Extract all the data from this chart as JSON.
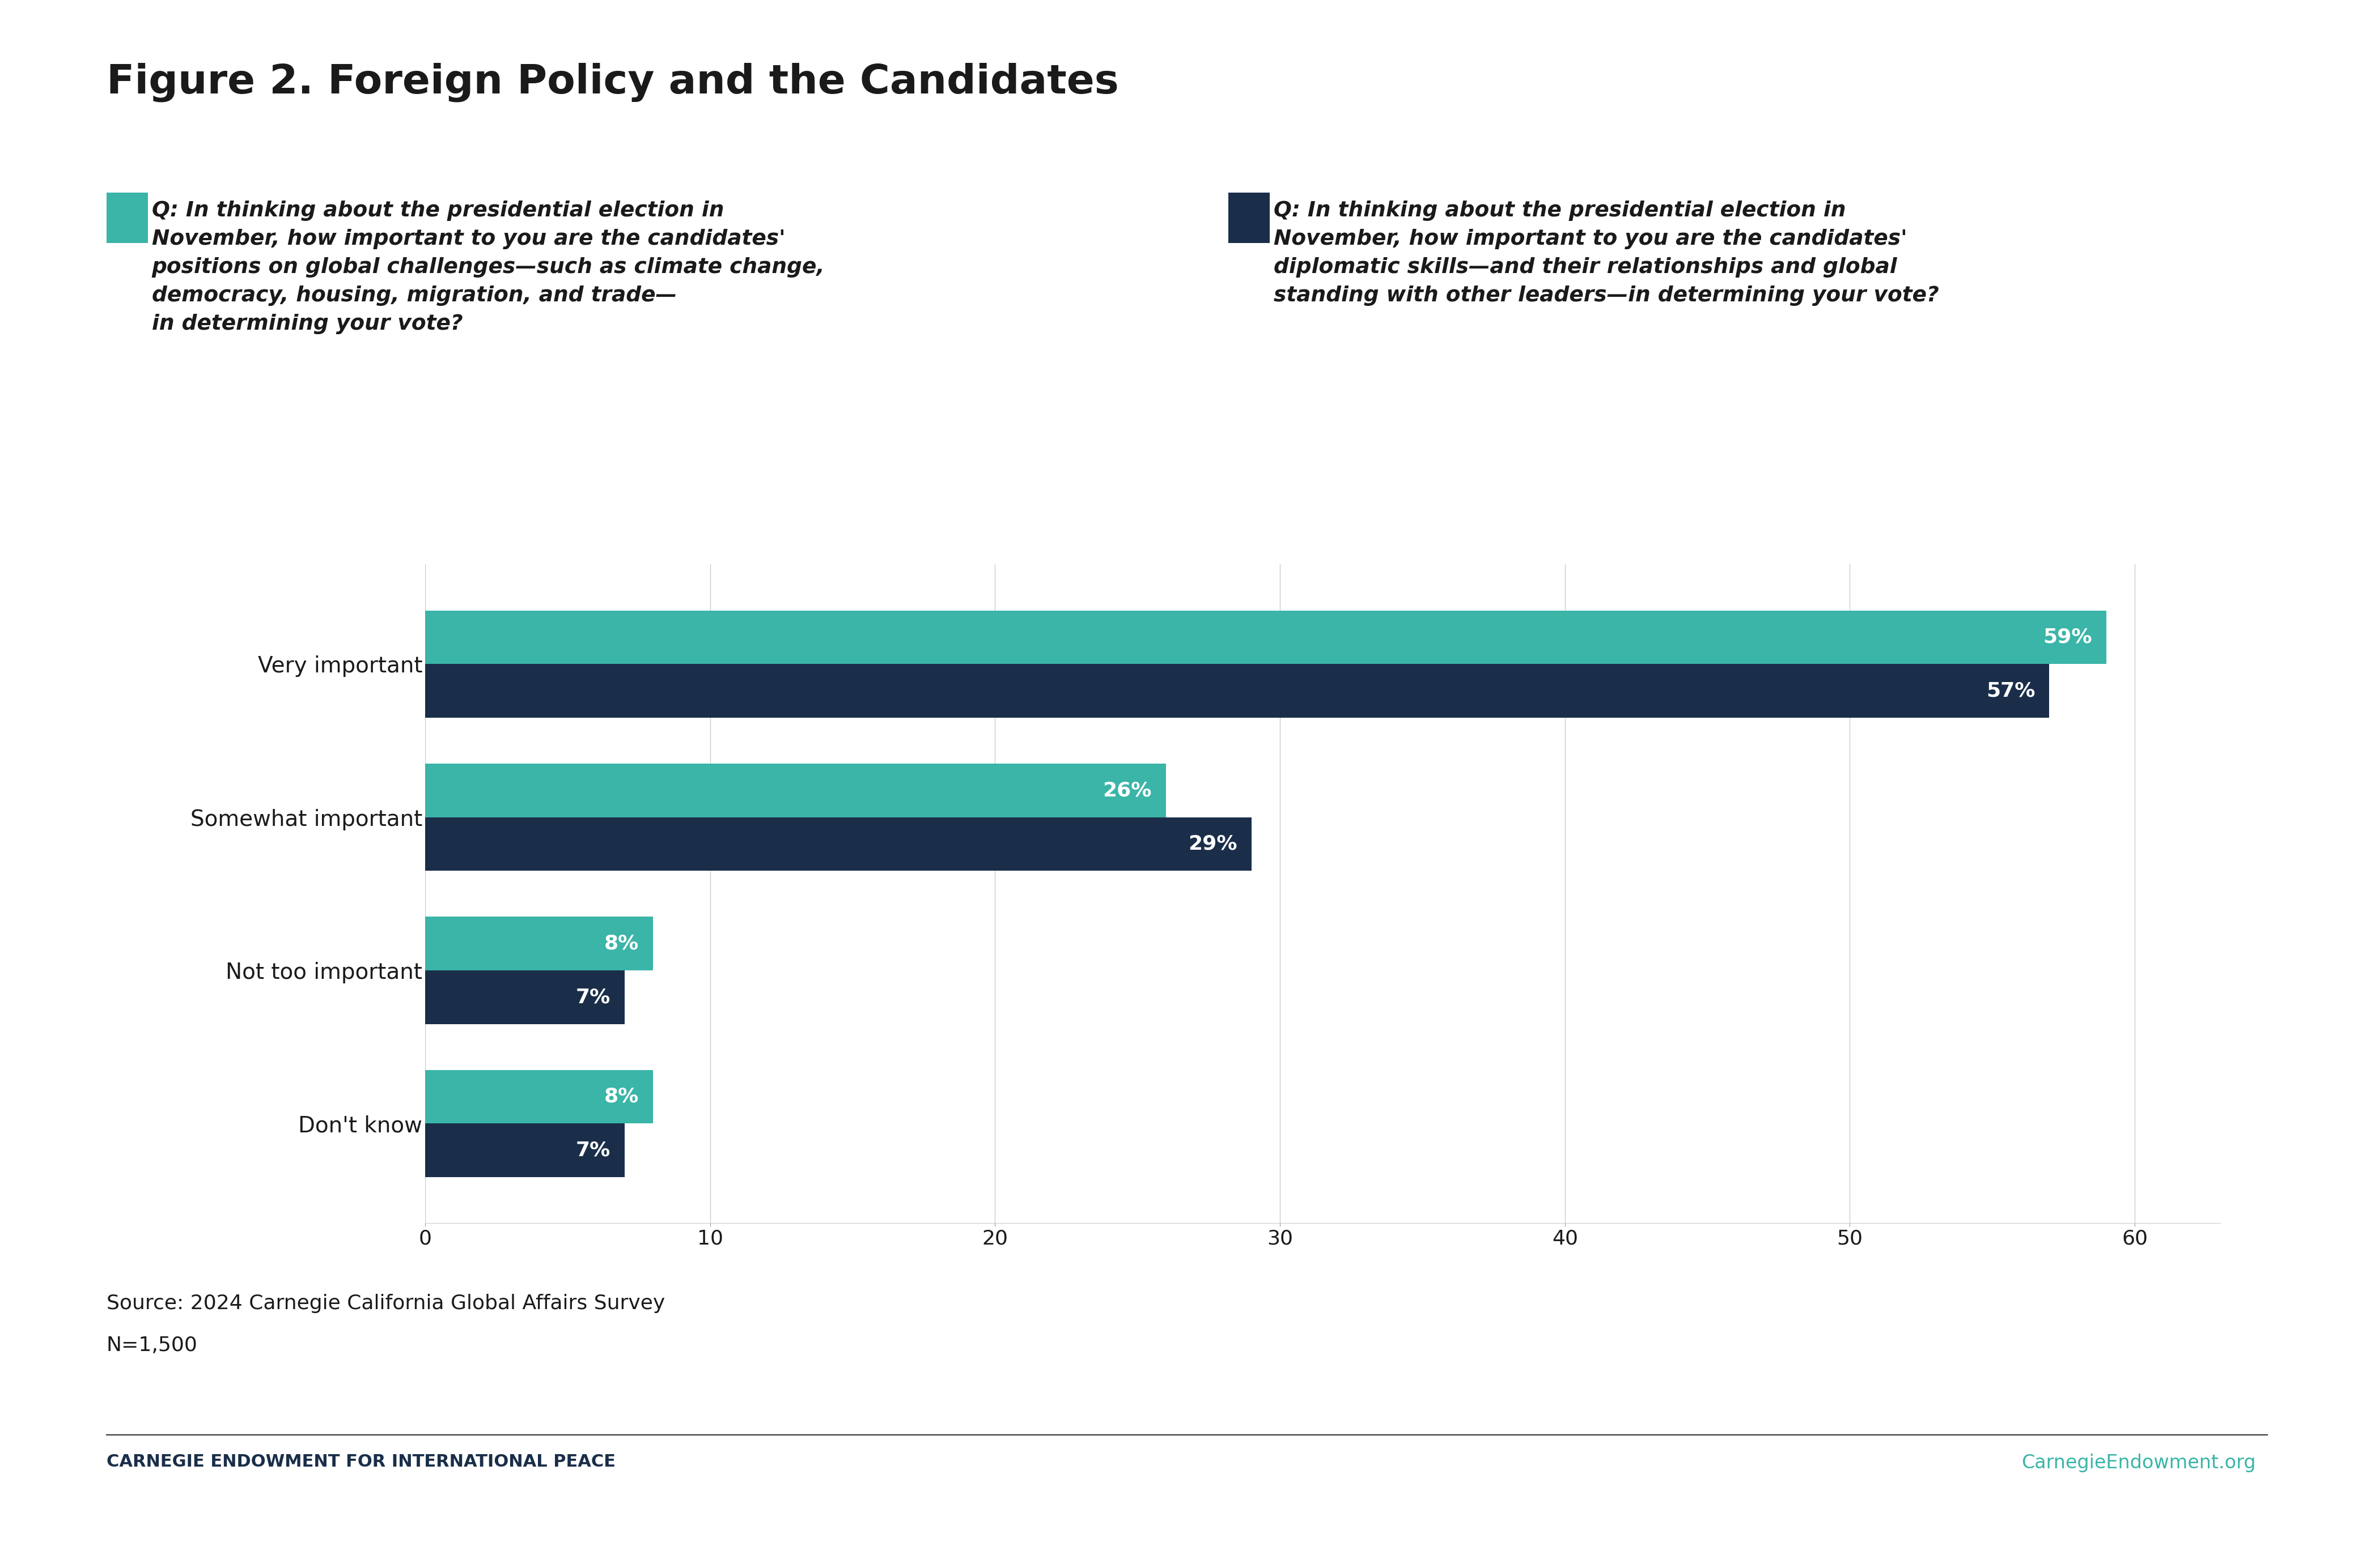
{
  "title": "Figure 2. Foreign Policy and the Candidates",
  "q1_text": "Q: In thinking about the presidential election in\nNovember, how important to you are the candidates'\npositions on global challenges—such as climate change,\ndemocracy, housing, migration, and trade—\nin determining your vote?",
  "q2_text": "Q: In thinking about the presidential election in\nNovember, how important to you are the candidates'\ndiplomatic skills—and their relationships and global\nstanding with other leaders—in determining your vote?",
  "categories": [
    "Very important",
    "Somewhat important",
    "Not too important",
    "Don't know"
  ],
  "series1_values": [
    59,
    26,
    8,
    8
  ],
  "series2_values": [
    57,
    29,
    7,
    7
  ],
  "series1_color": "#3ab5a8",
  "series2_color": "#1a2e4a",
  "bar_height": 0.35,
  "xlim": [
    0,
    63
  ],
  "xticks": [
    0,
    10,
    20,
    30,
    40,
    50,
    60
  ],
  "source_text": "Source: 2024 Carnegie California Global Affairs Survey",
  "n_text": "N=1,500",
  "footer_left": "CARNEGIE ENDOWMENT FOR INTERNATIONAL PEACE",
  "footer_right": "CarnegieEndowment.org",
  "footer_color": "#3ab5a8",
  "bg_color": "#ffffff",
  "text_color": "#1a1a1a",
  "label_fontsize": 28,
  "tick_fontsize": 26,
  "title_fontsize": 52,
  "question_fontsize": 27,
  "source_fontsize": 26,
  "footer_fontsize": 22,
  "value_label_fontsize": 26
}
